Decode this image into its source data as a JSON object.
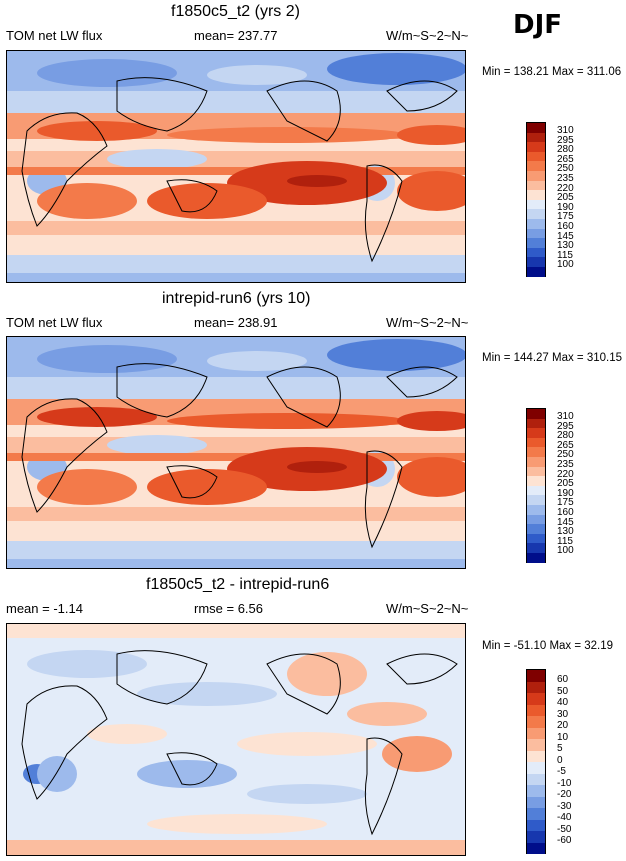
{
  "season": "DJF",
  "panels": [
    {
      "title": "f1850c5_t2 (yrs 2)",
      "left_label": "TOM net LW flux",
      "center_label": "mean= 237.77",
      "units": "W/m~S~2~N~",
      "minmax": "Min = 138.21 Max = 311.06",
      "colorbar": [
        "310",
        "295",
        "280",
        "265",
        "250",
        "235",
        "220",
        "205",
        "190",
        "175",
        "160",
        "145",
        "130",
        "115",
        "100"
      ]
    },
    {
      "title": "intrepid-run6 (yrs 10)",
      "left_label": "TOM net LW flux",
      "center_label": "mean= 238.91",
      "units": "W/m~S~2~N~",
      "minmax": "Min = 144.27 Max = 310.15",
      "colorbar": [
        "310",
        "295",
        "280",
        "265",
        "250",
        "235",
        "220",
        "205",
        "190",
        "175",
        "160",
        "145",
        "130",
        "115",
        "100"
      ]
    },
    {
      "title": "f1850c5_t2 - intrepid-run6",
      "left_label": "mean = -1.14",
      "center_label": "rmse = 6.56",
      "units": "W/m~S~2~N~",
      "minmax": "Min = -51.10 Max = 32.19",
      "colorbar": [
        "60",
        "50",
        "40",
        "30",
        "20",
        "10",
        "5",
        "0",
        "-5",
        "-10",
        "-20",
        "-30",
        "-40",
        "-50",
        "-60"
      ]
    }
  ],
  "colors": {
    "abs_scale": [
      "#7f0000",
      "#b0200d",
      "#d63a1a",
      "#ea5a2c",
      "#f37a4a",
      "#f89b73",
      "#fbbd9f",
      "#fde3d3",
      "#e3ecf9",
      "#c4d6f2",
      "#9dbaec",
      "#789de3",
      "#527fd8",
      "#2f5bc9",
      "#1737ae",
      "#000e8a"
    ],
    "diff_scale": [
      "#7f0000",
      "#b0200d",
      "#d63a1a",
      "#ea5a2c",
      "#f37a4a",
      "#f89b73",
      "#fbbd9f",
      "#fde3d3",
      "#e3ecf9",
      "#c4d6f2",
      "#9dbaec",
      "#789de3",
      "#527fd8",
      "#2f5bc9",
      "#1737ae",
      "#000e8a"
    ]
  },
  "chart_data": [
    {
      "type": "heatmap",
      "title": "f1850c5_t2 (yrs 2)",
      "variable": "TOM net LW flux",
      "units": "W/m~S~2~N~",
      "mean": 237.77,
      "min": 138.21,
      "max": 311.06,
      "levels": [
        100,
        115,
        130,
        145,
        160,
        175,
        190,
        205,
        220,
        235,
        250,
        265,
        280,
        295,
        310
      ],
      "x": "longitude 0-360",
      "y": "latitude -90-90"
    },
    {
      "type": "heatmap",
      "title": "intrepid-run6 (yrs 10)",
      "variable": "TOM net LW flux",
      "units": "W/m~S~2~N~",
      "mean": 238.91,
      "min": 144.27,
      "max": 310.15,
      "levels": [
        100,
        115,
        130,
        145,
        160,
        175,
        190,
        205,
        220,
        235,
        250,
        265,
        280,
        295,
        310
      ],
      "x": "longitude 0-360",
      "y": "latitude -90-90"
    },
    {
      "type": "heatmap",
      "title": "f1850c5_t2 - intrepid-run6",
      "variable": "difference",
      "units": "W/m~S~2~N~",
      "mean": -1.14,
      "rmse": 6.56,
      "min": -51.1,
      "max": 32.19,
      "levels": [
        -60,
        -50,
        -40,
        -30,
        -20,
        -10,
        -5,
        0,
        5,
        10,
        20,
        30,
        40,
        50,
        60
      ],
      "x": "longitude 0-360",
      "y": "latitude -90-90"
    }
  ]
}
